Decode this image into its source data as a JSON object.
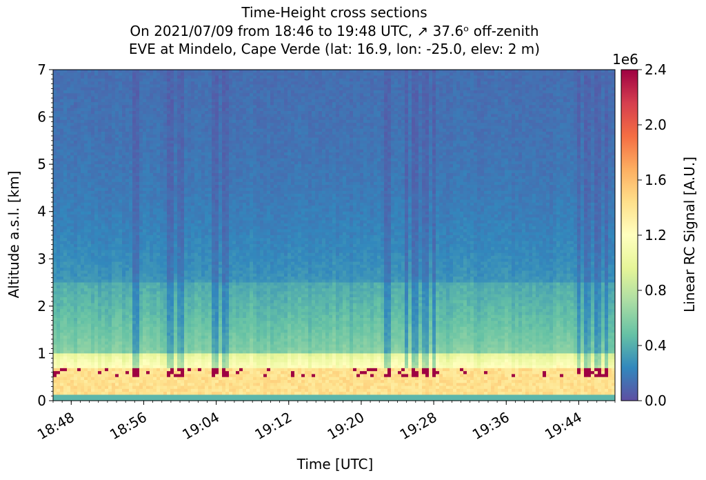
{
  "chart_data": {
    "type": "heatmap",
    "title_lines": [
      "Time-Height cross sections",
      "On 2021/07/09 from 18:46 to 19:48 UTC,  ↗  37.6ᵒ off-zenith",
      "EVE at Mindelo, Cape Verde (lat: 16.9, lon: -25.0, elev: 2 m)"
    ],
    "xlabel": "Time [UTC]",
    "ylabel": "Altitude a.s.l. [km]",
    "x_range": [
      "18:46",
      "19:48"
    ],
    "x_ticks": [
      "18:48",
      "18:56",
      "19:04",
      "19:12",
      "19:20",
      "19:28",
      "19:36",
      "19:44"
    ],
    "ylim": [
      0,
      7
    ],
    "y_ticks": [
      "0",
      "1",
      "2",
      "3",
      "4",
      "5",
      "6",
      "7"
    ],
    "colorbar": {
      "label": "Linear RC Signal [A.U.]",
      "multiplier": "1e6",
      "range": [
        0.0,
        2.4
      ],
      "ticks": [
        "0.0",
        "0.4",
        "0.8",
        "1.2",
        "1.6",
        "2.0",
        "2.4"
      ],
      "colormap": "Spectral_r",
      "colors": [
        "#5e4fa2",
        "#3288bd",
        "#66c2a5",
        "#abdda4",
        "#e6f598",
        "#ffffbf",
        "#fee08b",
        "#fdae61",
        "#f46d43",
        "#d53e4f",
        "#9e0142"
      ]
    },
    "features": {
      "surface_layer_km": [
        0.0,
        0.12
      ],
      "boundary_layer_top_km": 0.7,
      "aerosol_layer_km": [
        1.0,
        2.5
      ],
      "saturated_signal_near_km": 0.6,
      "low_signal_columns_utc": [
        "18:55",
        "18:59",
        "19:00",
        "19:04",
        "19:05",
        "19:23",
        "19:25",
        "19:26",
        "19:27",
        "19:28",
        "19:44",
        "19:45",
        "19:46",
        "19:47"
      ]
    }
  }
}
